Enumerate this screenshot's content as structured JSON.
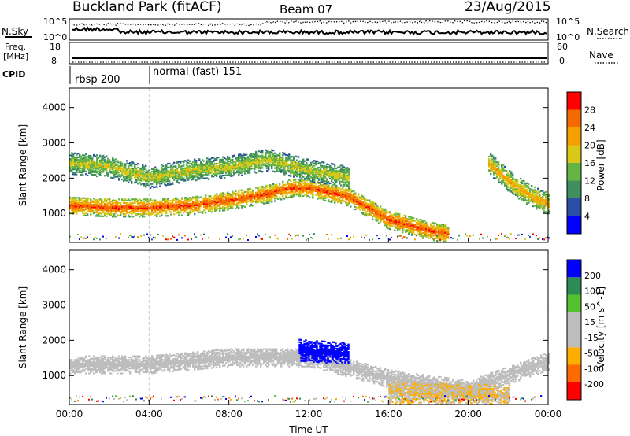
{
  "header": {
    "station": "Buckland Park (fitACF)",
    "beam": "Beam 07",
    "date": "23/Aug/2015"
  },
  "noise_panel": {
    "left_label": "N.Sky",
    "left_ticks": [
      "10^5",
      "10^0"
    ],
    "right_ticks": [
      "10^5",
      "10^0"
    ],
    "right_label": "N.Search"
  },
  "freq_panel": {
    "left_label_1": "Freq.",
    "left_label_2": "[MHz]",
    "left_ticks": [
      "18",
      "8"
    ],
    "right_ticks": [
      "60",
      "0"
    ],
    "right_label": "Nave"
  },
  "cpid": {
    "label": "CPID",
    "modes": [
      {
        "label": "rbsp 200",
        "start_hour": 0
      },
      {
        "label": "normal (fast) 151",
        "start_hour": 4
      }
    ]
  },
  "colors": {
    "power_scale": [
      "#0000ff",
      "#2b4fa6",
      "#3f8f5f",
      "#64b446",
      "#d8c818",
      "#f5a000",
      "#f26a00",
      "#ff0000"
    ],
    "velocity_scale": [
      "#ff0000",
      "#ff6a00",
      "#ffae00",
      "#bdbdbd",
      "#bdbdbd",
      "#55c030",
      "#2e8b57",
      "#0000ff"
    ]
  },
  "chart_data": [
    {
      "type": "heatmap",
      "panel": "power",
      "ylabel": "Slant Range [km]",
      "xlabel": "",
      "x_ticks": [],
      "y_ticks": [
        1000,
        2000,
        3000,
        4000
      ],
      "xlim": [
        0,
        24
      ],
      "ylim": [
        180,
        4550
      ],
      "colorbar": {
        "label": "Power [dB]",
        "ticks": [
          "28",
          "24",
          "20",
          "16",
          "12",
          "8",
          "4"
        ],
        "range": [
          0,
          32
        ]
      },
      "features": [
        {
          "name": "main band",
          "t": [
            0,
            2,
            4,
            6,
            8,
            10,
            11,
            12,
            14,
            16,
            18,
            19
          ],
          "range_km": [
            1200,
            1150,
            1150,
            1200,
            1350,
            1550,
            1700,
            1700,
            1450,
            800,
            500,
            400
          ],
          "power_db": 28
        },
        {
          "name": "upper band",
          "t": [
            0,
            2,
            4,
            6,
            8,
            10,
            12,
            14
          ],
          "range_km": [
            2400,
            2300,
            2000,
            2200,
            2300,
            2500,
            2200,
            2000
          ],
          "power_db": 18
        },
        {
          "name": "evening echoes",
          "t": [
            21,
            22,
            23,
            24
          ],
          "range_km": [
            2400,
            1900,
            1500,
            1250
          ],
          "power_db": 22
        }
      ]
    },
    {
      "type": "heatmap",
      "panel": "velocity",
      "ylabel": "Slant Range [km]",
      "xlabel": "Time UT",
      "x_ticks": [
        "00:00",
        "04:00",
        "08:00",
        "12:00",
        "16:00",
        "20:00",
        "00:00"
      ],
      "y_ticks": [
        1000,
        2000,
        3000,
        4000
      ],
      "xlim": [
        0,
        24
      ],
      "ylim": [
        180,
        4550
      ],
      "colorbar": {
        "label": "Velocity [m s^-1]",
        "ticks": [
          "200",
          "100",
          "50",
          "15",
          "-15",
          "-50",
          "-100",
          "-200"
        ],
        "range": [
          -250,
          250
        ]
      },
      "features": [
        {
          "name": "ground scatter",
          "t": [
            0,
            4,
            8,
            12,
            16,
            20,
            24
          ],
          "range_km": [
            1300,
            1300,
            1500,
            1500,
            900,
            600,
            1400
          ],
          "velocity": 0
        },
        {
          "name": "strong positive flow",
          "t": [
            11.5,
            14
          ],
          "range_km": [
            1700,
            1600
          ],
          "velocity": 220
        },
        {
          "name": "negative flow",
          "t": [
            16,
            22
          ],
          "range_km": [
            500,
            400
          ],
          "velocity": -60
        }
      ]
    }
  ]
}
